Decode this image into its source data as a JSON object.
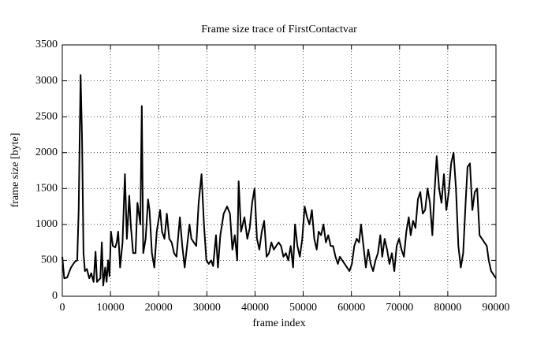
{
  "chart_data": {
    "type": "line",
    "title": "Frame size trace of FirstContactvar",
    "x_label": "frame index",
    "y_label": "frame size [byte]",
    "xlim": [
      0,
      90000
    ],
    "xticks": [
      0,
      10000,
      20000,
      30000,
      40000,
      50000,
      60000,
      70000,
      80000,
      90000
    ],
    "ylim": [
      0,
      3500
    ],
    "yticks": [
      0,
      500,
      1000,
      1500,
      2000,
      2500,
      3000,
      3500
    ],
    "grid": true,
    "color": "#000000",
    "x": [
      0,
      400,
      1000,
      1800,
      2600,
      3100,
      3400,
      3800,
      4100,
      4400,
      4700,
      5100,
      5600,
      6000,
      6500,
      6900,
      7200,
      7900,
      8200,
      8500,
      8900,
      9200,
      9500,
      9800,
      10100,
      10500,
      11000,
      11300,
      11600,
      12000,
      12500,
      13000,
      13400,
      13900,
      14200,
      14700,
      15200,
      15600,
      16200,
      16500,
      16800,
      17300,
      17800,
      18100,
      18600,
      19100,
      19600,
      20300,
      20700,
      21200,
      21700,
      22200,
      22700,
      23200,
      23700,
      24400,
      24900,
      25400,
      25900,
      26400,
      26800,
      27300,
      27800,
      28300,
      28900,
      29400,
      29900,
      30400,
      30900,
      31300,
      31900,
      32300,
      32800,
      33500,
      34200,
      34800,
      35300,
      35800,
      36300,
      36600,
      37100,
      37800,
      38400,
      38900,
      39400,
      39900,
      40400,
      40900,
      41400,
      41900,
      42400,
      42900,
      43400,
      43900,
      44400,
      44900,
      45400,
      45900,
      46400,
      46900,
      47400,
      47900,
      48300,
      48800,
      49300,
      49800,
      50300,
      50800,
      51300,
      51800,
      52300,
      52800,
      53200,
      53700,
      54200,
      54700,
      55200,
      55700,
      56200,
      56700,
      57200,
      57600,
      58100,
      58600,
      59100,
      59600,
      60100,
      60600,
      61100,
      61600,
      62000,
      62500,
      63000,
      63500,
      64000,
      64500,
      65000,
      65500,
      66000,
      66400,
      66900,
      67400,
      67900,
      68400,
      68900,
      69400,
      69900,
      70400,
      70900,
      71400,
      71900,
      72300,
      72800,
      73300,
      73800,
      74300,
      74800,
      75300,
      75800,
      76300,
      76800,
      77200,
      77700,
      78200,
      78700,
      79200,
      79700,
      80200,
      80700,
      81200,
      81700,
      82200,
      82700,
      83200,
      83700,
      84100,
      84600,
      85100,
      85600,
      86100,
      86600,
      87100,
      87600,
      88100,
      88500,
      89000,
      90000
    ],
    "values": [
      550,
      250,
      260,
      400,
      480,
      500,
      1200,
      3080,
      2200,
      600,
      350,
      380,
      250,
      320,
      200,
      620,
      200,
      250,
      750,
      150,
      400,
      200,
      500,
      280,
      900,
      700,
      680,
      750,
      900,
      400,
      750,
      1700,
      800,
      1400,
      1000,
      600,
      600,
      1300,
      1000,
      2650,
      600,
      800,
      1350,
      1200,
      600,
      400,
      900,
      1200,
      900,
      800,
      1150,
      800,
      750,
      600,
      550,
      1100,
      700,
      400,
      700,
      1000,
      800,
      750,
      700,
      1300,
      1700,
      1000,
      500,
      450,
      500,
      420,
      850,
      400,
      850,
      1150,
      1250,
      1150,
      650,
      850,
      500,
      1600,
      900,
      1100,
      800,
      950,
      1300,
      1500,
      800,
      650,
      900,
      1050,
      550,
      600,
      750,
      650,
      700,
      750,
      700,
      550,
      600,
      500,
      700,
      400,
      1000,
      700,
      550,
      800,
      1250,
      1100,
      1000,
      1200,
      800,
      650,
      900,
      850,
      1000,
      750,
      850,
      700,
      700,
      550,
      450,
      550,
      500,
      450,
      400,
      350,
      450,
      700,
      800,
      750,
      1000,
      700,
      400,
      650,
      450,
      350,
      500,
      600,
      850,
      550,
      800,
      650,
      450,
      600,
      350,
      700,
      800,
      650,
      550,
      900,
      1100,
      850,
      1050,
      950,
      1350,
      1450,
      1150,
      1200,
      1500,
      1300,
      850,
      1400,
      1950,
      1500,
      1300,
      1700,
      1200,
      1450,
      1850,
      2000,
      1500,
      700,
      400,
      600,
      1300,
      1800,
      1850,
      1200,
      1450,
      1500,
      850,
      800,
      750,
      700,
      500,
      350,
      250
    ]
  }
}
